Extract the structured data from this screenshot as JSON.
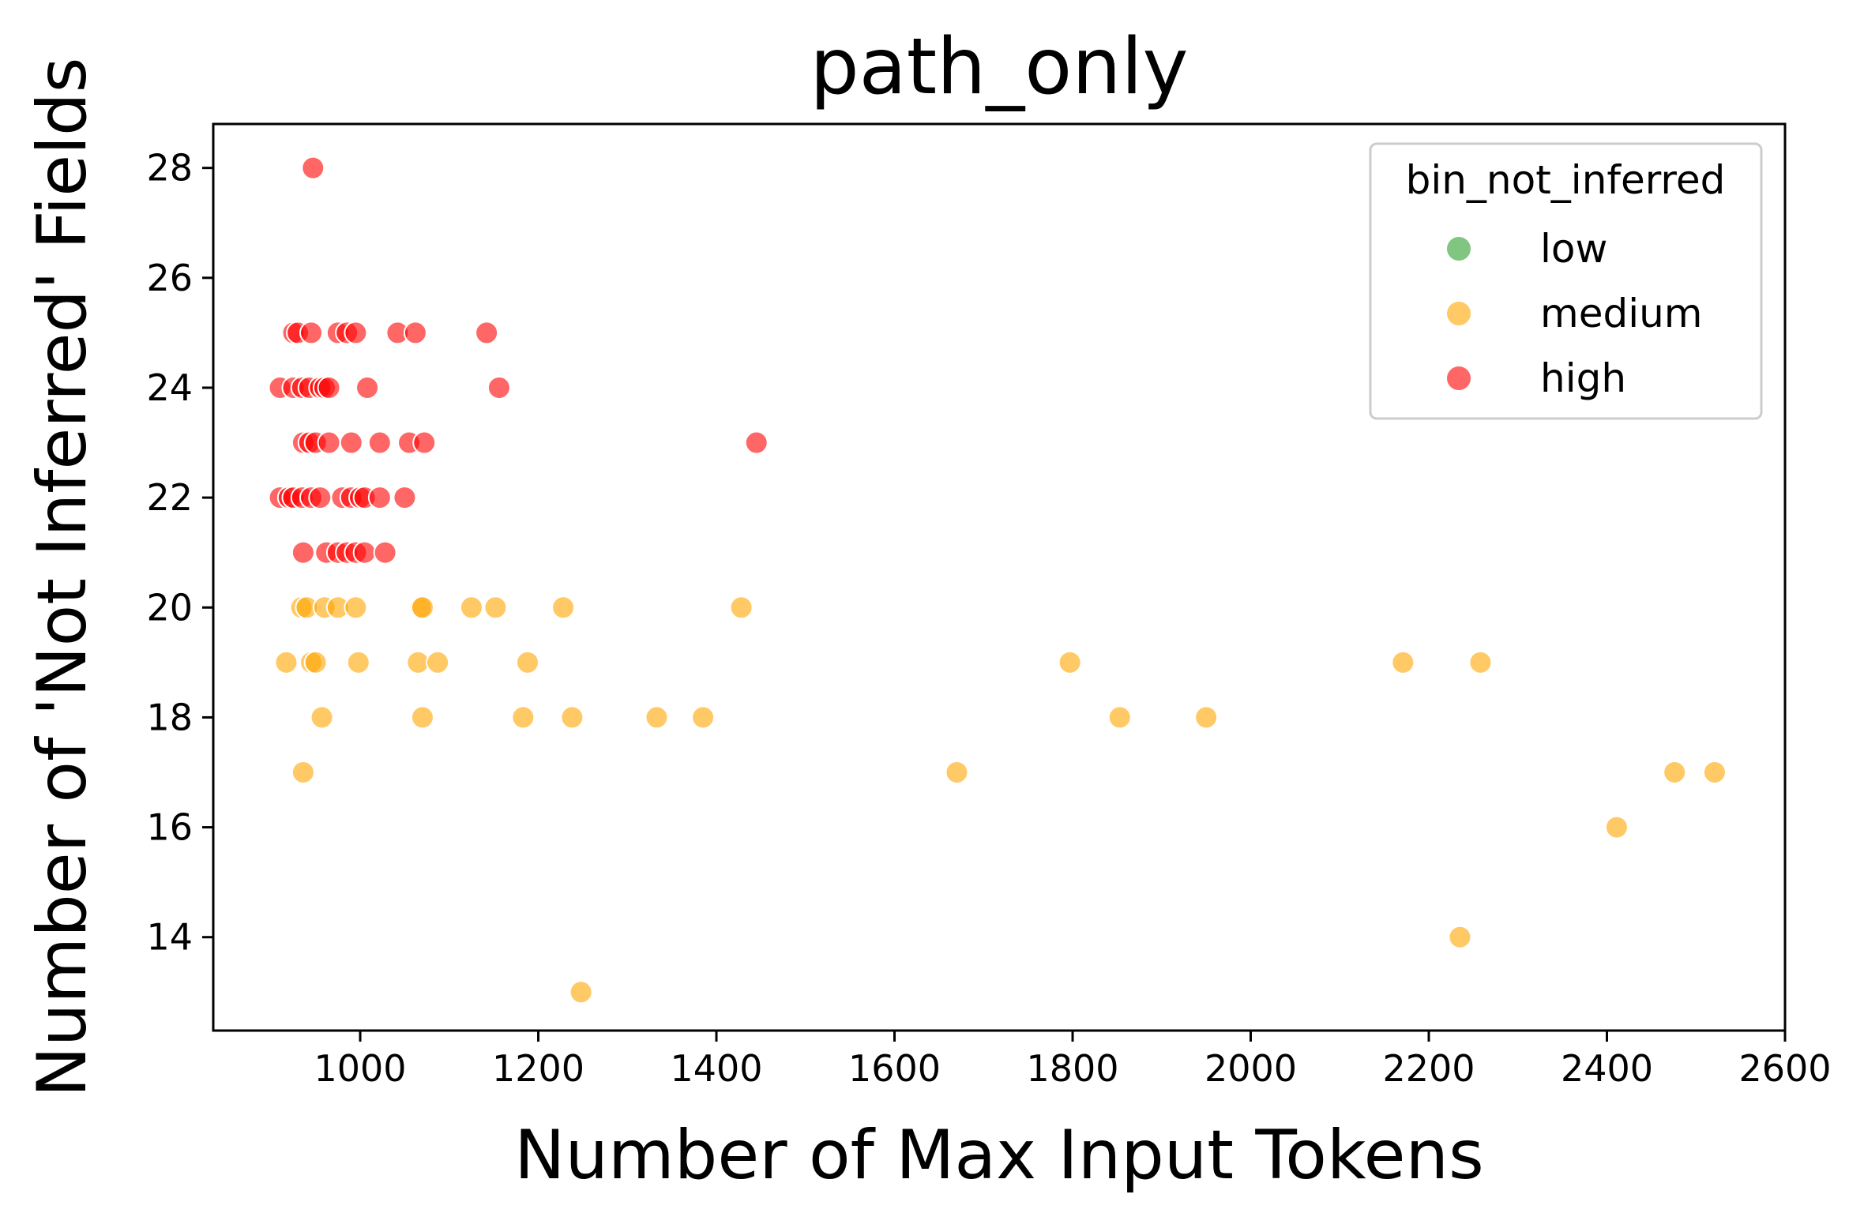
{
  "chart_data": {
    "type": "scatter",
    "title": "path_only",
    "xlabel": "Number of Max Input Tokens",
    "ylabel": "Number of 'Not Inferred' Fields",
    "xlim": [
      835,
      2600
    ],
    "ylim": [
      12.3,
      28.8
    ],
    "xticks": [
      1000,
      1200,
      1400,
      1600,
      1800,
      2000,
      2200,
      2400,
      2600
    ],
    "yticks": [
      14,
      16,
      18,
      20,
      22,
      24,
      26,
      28
    ],
    "grid": false,
    "legend": {
      "title": "bin_not_inferred",
      "placement": "top-right"
    },
    "series": [
      {
        "name": "low",
        "color": "#2ca02c",
        "points": []
      },
      {
        "name": "medium",
        "color": "#ffa500",
        "points": [
          [
            934,
            20
          ],
          [
            940,
            20
          ],
          [
            960,
            20
          ],
          [
            975,
            20
          ],
          [
            995,
            20
          ],
          [
            1068,
            20
          ],
          [
            1070,
            20
          ],
          [
            1125,
            20
          ],
          [
            1152,
            20
          ],
          [
            1228,
            20
          ],
          [
            1428,
            20
          ],
          [
            917,
            19
          ],
          [
            945,
            19
          ],
          [
            950,
            19
          ],
          [
            998,
            19
          ],
          [
            1065,
            19
          ],
          [
            1087,
            19
          ],
          [
            1188,
            19
          ],
          [
            1797,
            19
          ],
          [
            2171,
            19
          ],
          [
            2258,
            19
          ],
          [
            957,
            18
          ],
          [
            1070,
            18
          ],
          [
            1183,
            18
          ],
          [
            1238,
            18
          ],
          [
            1333,
            18
          ],
          [
            1385,
            18
          ],
          [
            1853,
            18
          ],
          [
            1950,
            18
          ],
          [
            936,
            17
          ],
          [
            1670,
            17
          ],
          [
            2476,
            17
          ],
          [
            2521,
            17
          ],
          [
            2411,
            16
          ],
          [
            2235,
            14
          ],
          [
            1248,
            13
          ]
        ]
      },
      {
        "name": "high",
        "color": "#ff0000",
        "points": [
          [
            947,
            28
          ],
          [
            925,
            25
          ],
          [
            930,
            25
          ],
          [
            945,
            25
          ],
          [
            975,
            25
          ],
          [
            985,
            25
          ],
          [
            995,
            25
          ],
          [
            1042,
            25
          ],
          [
            1062,
            25
          ],
          [
            1142,
            25
          ],
          [
            910,
            24
          ],
          [
            925,
            24
          ],
          [
            935,
            24
          ],
          [
            943,
            24
          ],
          [
            955,
            24
          ],
          [
            960,
            24
          ],
          [
            965,
            24
          ],
          [
            1008,
            24
          ],
          [
            1156,
            24
          ],
          [
            936,
            23
          ],
          [
            943,
            23
          ],
          [
            950,
            23
          ],
          [
            965,
            23
          ],
          [
            990,
            23
          ],
          [
            1022,
            23
          ],
          [
            1055,
            23
          ],
          [
            1072,
            23
          ],
          [
            1445,
            23
          ],
          [
            910,
            22
          ],
          [
            920,
            22
          ],
          [
            925,
            22
          ],
          [
            935,
            22
          ],
          [
            945,
            22
          ],
          [
            955,
            22
          ],
          [
            980,
            22
          ],
          [
            990,
            22
          ],
          [
            1000,
            22
          ],
          [
            1005,
            22
          ],
          [
            1022,
            22
          ],
          [
            1050,
            22
          ],
          [
            936,
            21
          ],
          [
            962,
            21
          ],
          [
            975,
            21
          ],
          [
            985,
            21
          ],
          [
            995,
            21
          ],
          [
            1005,
            21
          ],
          [
            1028,
            21
          ]
        ]
      }
    ]
  }
}
